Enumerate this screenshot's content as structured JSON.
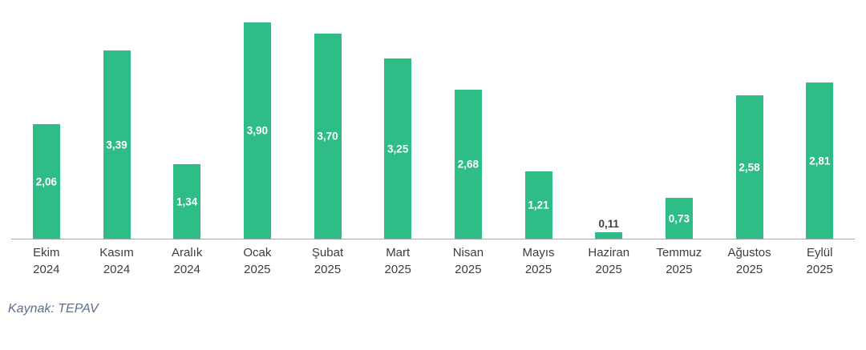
{
  "chart_data": {
    "type": "bar",
    "categories": [
      "Ekim 2024",
      "Kasım 2024",
      "Aralık 2024",
      "Ocak 2025",
      "Şubat 2025",
      "Mart 2025",
      "Nisan 2025",
      "Mayıs 2025",
      "Haziran 2025",
      "Temmuz 2025",
      "Ağustos 2025",
      "Eylül 2025"
    ],
    "values": [
      2.06,
      3.39,
      1.34,
      3.9,
      3.7,
      3.25,
      2.68,
      1.21,
      0.11,
      0.73,
      2.58,
      2.81
    ],
    "value_labels": [
      "2,06",
      "3,39",
      "1,34",
      "3,90",
      "3,70",
      "3,25",
      "2,68",
      "1,21",
      "0,11",
      "0,73",
      "2,58",
      "2,81"
    ],
    "points": [
      {
        "month": "Ekim",
        "year": "2024",
        "value": 2.06,
        "label": "2,06",
        "label_position": "inside"
      },
      {
        "month": "Kasım",
        "year": "2024",
        "value": 3.39,
        "label": "3,39",
        "label_position": "inside"
      },
      {
        "month": "Aralık",
        "year": "2024",
        "value": 1.34,
        "label": "1,34",
        "label_position": "inside"
      },
      {
        "month": "Ocak",
        "year": "2025",
        "value": 3.9,
        "label": "3,90",
        "label_position": "inside"
      },
      {
        "month": "Şubat",
        "year": "2025",
        "value": 3.7,
        "label": "3,70",
        "label_position": "inside"
      },
      {
        "month": "Mart",
        "year": "2025",
        "value": 3.25,
        "label": "3,25",
        "label_position": "inside"
      },
      {
        "month": "Nisan",
        "year": "2025",
        "value": 2.68,
        "label": "2,68",
        "label_position": "inside"
      },
      {
        "month": "Mayıs",
        "year": "2025",
        "value": 1.21,
        "label": "1,21",
        "label_position": "inside"
      },
      {
        "month": "Haziran",
        "year": "2025",
        "value": 0.11,
        "label": "0,11",
        "label_position": "above"
      },
      {
        "month": "Temmuz",
        "year": "2025",
        "value": 0.73,
        "label": "0,73",
        "label_position": "inside"
      },
      {
        "month": "Ağustos",
        "year": "2025",
        "value": 2.58,
        "label": "2,58",
        "label_position": "inside"
      },
      {
        "month": "Eylül",
        "year": "2025",
        "value": 2.81,
        "label": "2,81",
        "label_position": "inside"
      }
    ],
    "ylim": [
      0,
      4
    ],
    "grid": false,
    "y_axis_visible": false,
    "legend": "none",
    "colors": {
      "bar": "#2EBD87",
      "axis_line": "#A6A6A6",
      "value_label_inside": "#FFFFFF",
      "value_label_outside": "#404040",
      "x_tick_label": "#3D3D3D",
      "source_note": "#5A7090"
    }
  },
  "source_note": "Kaynak: TEPAV"
}
